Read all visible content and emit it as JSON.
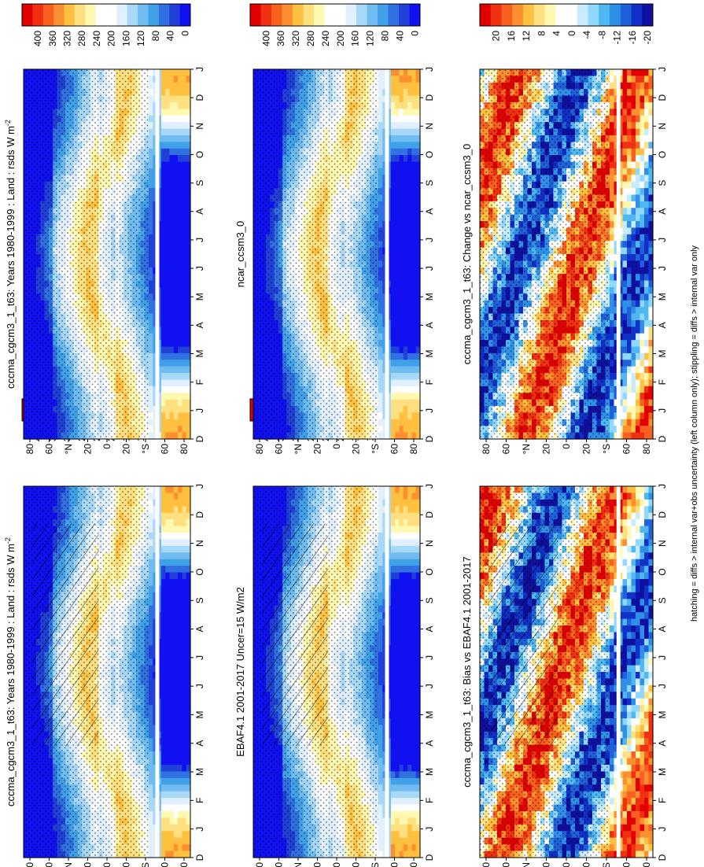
{
  "figure": {
    "footnote": "hatching = diffs > internal var+obs uncertainty (left column only); stippling = diffs > internal var only"
  },
  "chart_data": [
    {
      "type": "heatmap",
      "id": "p1",
      "title": "cccma_cgcm3_1_t63: Years 1980-1999 : Land : rsds W m",
      "title_sup": "-2",
      "x_ticks": [
        "D",
        "J",
        "F",
        "M",
        "A",
        "M",
        "J",
        "J",
        "A",
        "S",
        "O",
        "N",
        "D",
        "J"
      ],
      "y_ticks": [
        "80",
        "60",
        "°N",
        "20",
        "0",
        "20",
        "°S",
        "60",
        "80"
      ],
      "colorbar": {
        "ticks": [
          "400",
          "360",
          "320",
          "280",
          "240",
          "200",
          "160",
          "120",
          "80",
          "40",
          "0"
        ],
        "kind": "abs"
      },
      "hatching": true,
      "stippling": true
    },
    {
      "type": "heatmap",
      "id": "p2",
      "title": "cccma_cgcm3_1_t63: Years 1980-1999 : Land : rsds W m",
      "title_sup": "-2",
      "x_ticks": [
        "D",
        "J",
        "F",
        "M",
        "A",
        "M",
        "J",
        "J",
        "A",
        "S",
        "O",
        "N",
        "D",
        "J"
      ],
      "y_ticks": [
        "80",
        "60",
        "°N",
        "20",
        "0",
        "20",
        "°S",
        "60",
        "80"
      ],
      "colorbar": {
        "ticks": [
          "400",
          "360",
          "320",
          "280",
          "240",
          "200",
          "160",
          "120",
          "80",
          "40",
          "0"
        ],
        "kind": "abs"
      },
      "hatching": false,
      "stippling": true
    },
    {
      "type": "heatmap",
      "id": "p3",
      "title": "EBAF4.1 2001-2017 Uncer=15 W/m2",
      "title_sup": "",
      "x_ticks": [
        "D",
        "J",
        "F",
        "M",
        "A",
        "M",
        "J",
        "J",
        "A",
        "S",
        "O",
        "N",
        "D",
        "J"
      ],
      "y_ticks": [
        "80",
        "60",
        "°N",
        "20",
        "0",
        "20",
        "°S",
        "60",
        "80"
      ],
      "colorbar": {
        "ticks": [
          "400",
          "360",
          "320",
          "280",
          "240",
          "200",
          "160",
          "120",
          "80",
          "40",
          "0"
        ],
        "kind": "abs"
      },
      "hatching": true,
      "stippling": true
    },
    {
      "type": "heatmap",
      "id": "p4",
      "title": "ncar_ccsm3_0",
      "title_sup": "",
      "x_ticks": [
        "D",
        "J",
        "F",
        "M",
        "A",
        "M",
        "J",
        "J",
        "A",
        "S",
        "O",
        "N",
        "D",
        "J"
      ],
      "y_ticks": [
        "80",
        "60",
        "°N",
        "20",
        "0",
        "20",
        "°S",
        "60",
        "80"
      ],
      "colorbar": {
        "ticks": [
          "400",
          "360",
          "320",
          "280",
          "240",
          "200",
          "160",
          "120",
          "80",
          "40",
          "0"
        ],
        "kind": "abs"
      },
      "hatching": false,
      "stippling": true
    },
    {
      "type": "heatmap",
      "id": "p5",
      "title": "cccma_cgcm3_1_t63: Bias vs EBAF4.1 2001-2017",
      "title_sup": "",
      "x_ticks": [
        "D",
        "J",
        "F",
        "M",
        "A",
        "M",
        "J",
        "J",
        "A",
        "S",
        "O",
        "N",
        "D",
        "J"
      ],
      "y_ticks": [
        "80",
        "60",
        "°N",
        "20",
        "0",
        "20",
        "°S",
        "60",
        "80"
      ],
      "colorbar": {
        "ticks": [
          "20",
          "16",
          "12",
          "8",
          "4",
          "0",
          "-4",
          "-8",
          "-12",
          "-16",
          "-20"
        ],
        "kind": "diff"
      },
      "hatching": true,
      "stippling": true
    },
    {
      "type": "heatmap",
      "id": "p6",
      "title": "cccma_cgcm3_1_t63: Change vs ncar_ccsm3_0",
      "title_sup": "",
      "x_ticks": [
        "D",
        "J",
        "F",
        "M",
        "A",
        "M",
        "J",
        "J",
        "A",
        "S",
        "O",
        "N",
        "D",
        "J"
      ],
      "y_ticks": [
        "80",
        "60",
        "°N",
        "20",
        "0",
        "20",
        "°S",
        "60",
        "80"
      ],
      "colorbar": {
        "ticks": [
          "20",
          "16",
          "12",
          "8",
          "4",
          "0",
          "-4",
          "-8",
          "-12",
          "-16",
          "-20"
        ],
        "kind": "diff"
      },
      "hatching": false,
      "stippling": true
    }
  ]
}
